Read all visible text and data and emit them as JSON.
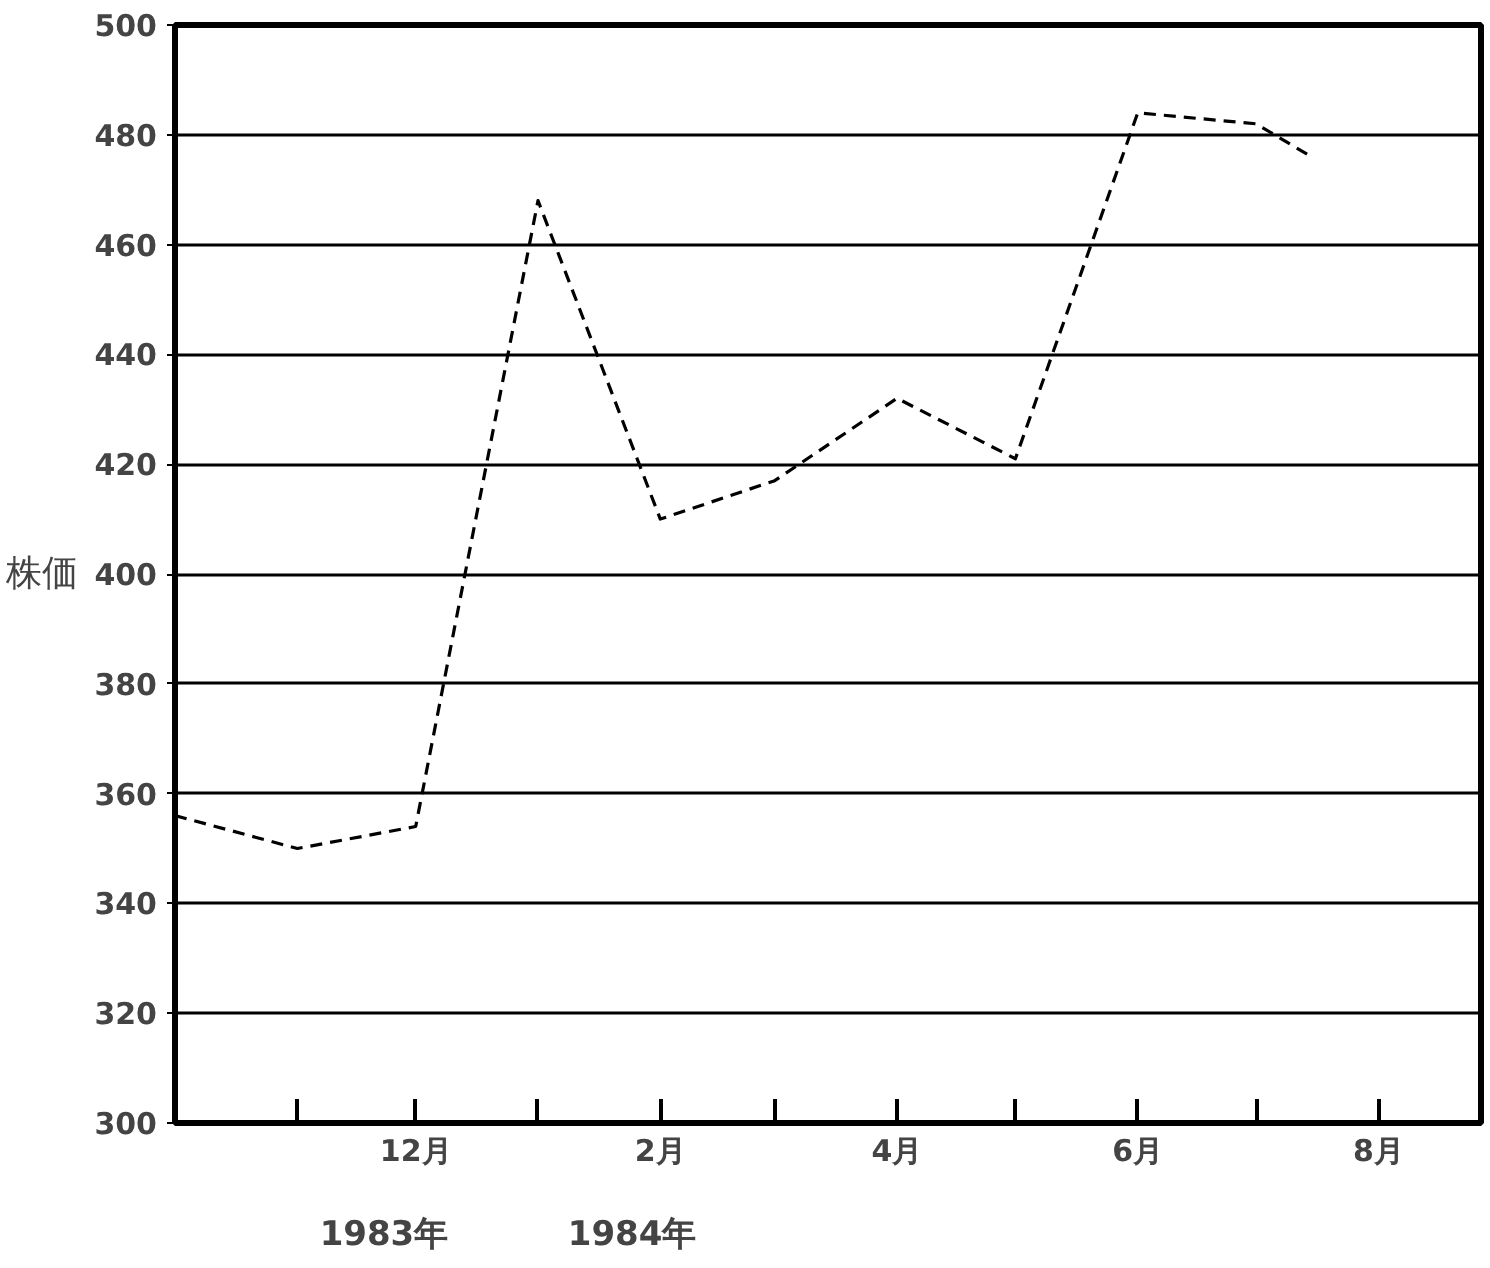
{
  "chart_data": {
    "type": "line",
    "ylabel": "株価",
    "x": [
      "1983-10-01",
      "1983-11-01",
      "1983-12-01",
      "1984-01-01",
      "1984-02-01",
      "1984-03-01",
      "1984-04-01",
      "1984-05-01",
      "1984-06-01",
      "1984-07-01",
      "1984-07-15"
    ],
    "series": [
      {
        "color": "#000000",
        "values": [
          356,
          350,
          354,
          468,
          410,
          417,
          432,
          421,
          484,
          482,
          476
        ]
      }
    ],
    "xlim": [
      "1983-10-01",
      "1984-08-27"
    ],
    "xticks": [
      {
        "value": "1983-11-01",
        "label": null
      },
      {
        "value": "1983-12-01",
        "label": "12月"
      },
      {
        "value": "1984-01-01",
        "label": null
      },
      {
        "value": "1984-02-01",
        "label": "2月"
      },
      {
        "value": "1984-03-01",
        "label": null
      },
      {
        "value": "1984-04-01",
        "label": "4月"
      },
      {
        "value": "1984-05-01",
        "label": null
      },
      {
        "value": "1984-06-01",
        "label": "6月"
      },
      {
        "value": "1984-07-01",
        "label": null
      },
      {
        "value": "1984-08-01",
        "label": "8月"
      }
    ],
    "ylim": [
      300,
      500
    ],
    "yticks": [
      300,
      320,
      340,
      360,
      380,
      400,
      420,
      440,
      460,
      480,
      500
    ],
    "grid": "y",
    "line_style": "dashed",
    "marker": "none",
    "annotations": [
      "1983年",
      "1984年"
    ]
  }
}
